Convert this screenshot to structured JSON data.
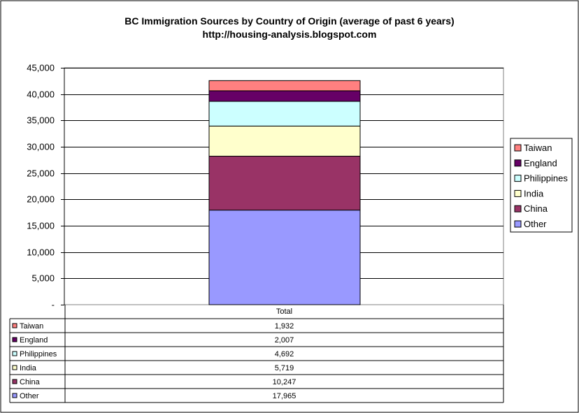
{
  "chart_data": {
    "type": "bar",
    "stacked": true,
    "title": "BC Immigration Sources by Country of Origin (average of past 6 years)",
    "subtitle": "http://housing-analysis.blogspot.com",
    "categories": [
      "Total"
    ],
    "ylim": [
      0,
      45000
    ],
    "y_ticks": [
      {
        "value": 0,
        "label": "-"
      },
      {
        "value": 5000,
        "label": "5,000"
      },
      {
        "value": 10000,
        "label": "10,000"
      },
      {
        "value": 15000,
        "label": "15,000"
      },
      {
        "value": 20000,
        "label": "20,000"
      },
      {
        "value": 25000,
        "label": "25,000"
      },
      {
        "value": 30000,
        "label": "30,000"
      },
      {
        "value": 35000,
        "label": "35,000"
      },
      {
        "value": 40000,
        "label": "40,000"
      },
      {
        "value": 45000,
        "label": "45,000"
      }
    ],
    "grid": true,
    "legend": "right",
    "series": [
      {
        "name": "Other",
        "values": [
          17965
        ],
        "label": "17,965",
        "color": "#9999ff"
      },
      {
        "name": "China",
        "values": [
          10247
        ],
        "label": "10,247",
        "color": "#993366"
      },
      {
        "name": "India",
        "values": [
          5719
        ],
        "label": "5,719",
        "color": "#ffffcc"
      },
      {
        "name": "Philippines",
        "values": [
          4692
        ],
        "label": "4,692",
        "color": "#ccffff"
      },
      {
        "name": "England",
        "values": [
          2007
        ],
        "label": "2,007",
        "color": "#660066"
      },
      {
        "name": "Taiwan",
        "values": [
          1932
        ],
        "label": "1,932",
        "color": "#ff8080"
      }
    ],
    "plot_background": "#ffffff",
    "border_color": "#000000"
  }
}
